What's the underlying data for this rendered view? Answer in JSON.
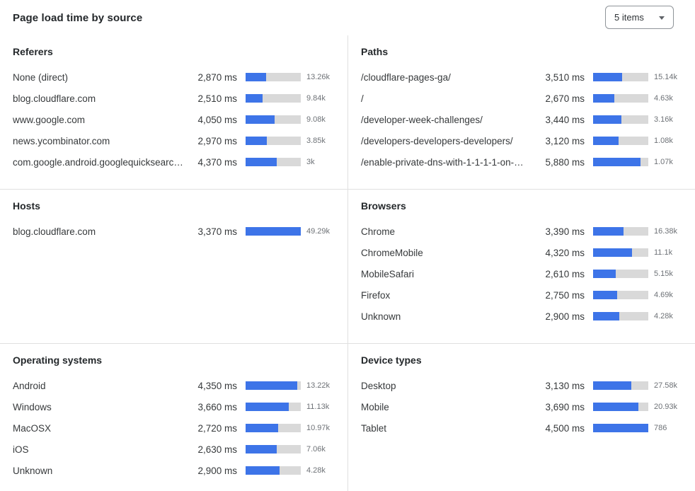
{
  "header": {
    "title": "Page load time by source",
    "items_selector": {
      "value": "5 items"
    }
  },
  "colors": {
    "bar_fill": "#3d74e8",
    "bar_track": "#d9d9d9",
    "divider": "#e0e0e0",
    "title_text": "#24282b",
    "row_text": "#36393b",
    "count_text": "#6e7277"
  },
  "panels": [
    {
      "title": "Referers",
      "rows": [
        {
          "label": "None (direct)",
          "ms": "2,870 ms",
          "count": "13.26k",
          "fill_pct": 37
        },
        {
          "label": "blog.cloudflare.com",
          "ms": "2,510 ms",
          "count": "9.84k",
          "fill_pct": 31
        },
        {
          "label": "www.google.com",
          "ms": "4,050 ms",
          "count": "9.08k",
          "fill_pct": 53
        },
        {
          "label": "news.ycombinator.com",
          "ms": "2,970 ms",
          "count": "3.85k",
          "fill_pct": 38
        },
        {
          "label": "com.google.android.googlequicksearc…",
          "ms": "4,370 ms",
          "count": "3k",
          "fill_pct": 57
        }
      ]
    },
    {
      "title": "Paths",
      "rows": [
        {
          "label": "/cloudflare-pages-ga/",
          "ms": "3,510 ms",
          "count": "15.14k",
          "fill_pct": 52
        },
        {
          "label": "/",
          "ms": "2,670 ms",
          "count": "4.63k",
          "fill_pct": 38
        },
        {
          "label": "/developer-week-challenges/",
          "ms": "3,440 ms",
          "count": "3.16k",
          "fill_pct": 51
        },
        {
          "label": "/developers-developers-developers/",
          "ms": "3,120 ms",
          "count": "1.08k",
          "fill_pct": 46
        },
        {
          "label": "/enable-private-dns-with-1-1-1-1-on-…",
          "ms": "5,880 ms",
          "count": "1.07k",
          "fill_pct": 86
        }
      ]
    },
    {
      "title": "Hosts",
      "rows": [
        {
          "label": "blog.cloudflare.com",
          "ms": "3,370 ms",
          "count": "49.29k",
          "fill_pct": 100
        }
      ]
    },
    {
      "title": "Browsers",
      "rows": [
        {
          "label": "Chrome",
          "ms": "3,390 ms",
          "count": "16.38k",
          "fill_pct": 55
        },
        {
          "label": "ChromeMobile",
          "ms": "4,320 ms",
          "count": "11.1k",
          "fill_pct": 70
        },
        {
          "label": "MobileSafari",
          "ms": "2,610 ms",
          "count": "5.15k",
          "fill_pct": 41
        },
        {
          "label": "Firefox",
          "ms": "2,750 ms",
          "count": "4.69k",
          "fill_pct": 44
        },
        {
          "label": "Unknown",
          "ms": "2,900 ms",
          "count": "4.28k",
          "fill_pct": 47
        }
      ]
    },
    {
      "title": "Operating systems",
      "rows": [
        {
          "label": "Android",
          "ms": "4,350 ms",
          "count": "13.22k",
          "fill_pct": 94
        },
        {
          "label": "Windows",
          "ms": "3,660 ms",
          "count": "11.13k",
          "fill_pct": 78
        },
        {
          "label": "MacOSX",
          "ms": "2,720 ms",
          "count": "10.97k",
          "fill_pct": 59
        },
        {
          "label": "iOS",
          "ms": "2,630 ms",
          "count": "7.06k",
          "fill_pct": 56
        },
        {
          "label": "Unknown",
          "ms": "2,900 ms",
          "count": "4.28k",
          "fill_pct": 62
        }
      ]
    },
    {
      "title": "Device types",
      "rows": [
        {
          "label": "Desktop",
          "ms": "3,130 ms",
          "count": "27.58k",
          "fill_pct": 69
        },
        {
          "label": "Mobile",
          "ms": "3,690 ms",
          "count": "20.93k",
          "fill_pct": 82
        },
        {
          "label": "Tablet",
          "ms": "4,500 ms",
          "count": "786",
          "fill_pct": 100
        }
      ]
    }
  ]
}
